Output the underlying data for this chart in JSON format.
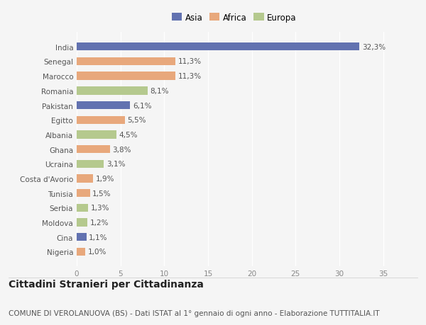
{
  "countries": [
    "Nigeria",
    "Cina",
    "Moldova",
    "Serbia",
    "Tunisia",
    "Costa d'Avorio",
    "Ucraina",
    "Ghana",
    "Albania",
    "Egitto",
    "Pakistan",
    "Romania",
    "Marocco",
    "Senegal",
    "India"
  ],
  "values": [
    1.0,
    1.1,
    1.2,
    1.3,
    1.5,
    1.9,
    3.1,
    3.8,
    4.5,
    5.5,
    6.1,
    8.1,
    11.3,
    11.3,
    32.3
  ],
  "labels": [
    "1,0%",
    "1,1%",
    "1,2%",
    "1,3%",
    "1,5%",
    "1,9%",
    "3,1%",
    "3,8%",
    "4,5%",
    "5,5%",
    "6,1%",
    "8,1%",
    "11,3%",
    "11,3%",
    "32,3%"
  ],
  "colors": [
    "#e8a87c",
    "#6272b0",
    "#b5c98e",
    "#b5c98e",
    "#e8a87c",
    "#e8a87c",
    "#b5c98e",
    "#e8a87c",
    "#b5c98e",
    "#e8a87c",
    "#6272b0",
    "#b5c98e",
    "#e8a87c",
    "#e8a87c",
    "#6272b0"
  ],
  "legend_labels": [
    "Asia",
    "Africa",
    "Europa"
  ],
  "legend_colors": [
    "#6272b0",
    "#e8a87c",
    "#b5c98e"
  ],
  "title": "Cittadini Stranieri per Cittadinanza",
  "subtitle": "COMUNE DI VEROLANUOVA (BS) - Dati ISTAT al 1° gennaio di ogni anno - Elaborazione TUTTITALIA.IT",
  "xlim": [
    0,
    36
  ],
  "xticks": [
    0,
    5,
    10,
    15,
    20,
    25,
    30,
    35
  ],
  "background_color": "#f5f5f5",
  "bar_height": 0.55,
  "title_fontsize": 10,
  "subtitle_fontsize": 7.5,
  "label_fontsize": 7.5,
  "ytick_fontsize": 7.5,
  "xtick_fontsize": 7.5,
  "legend_fontsize": 8.5
}
